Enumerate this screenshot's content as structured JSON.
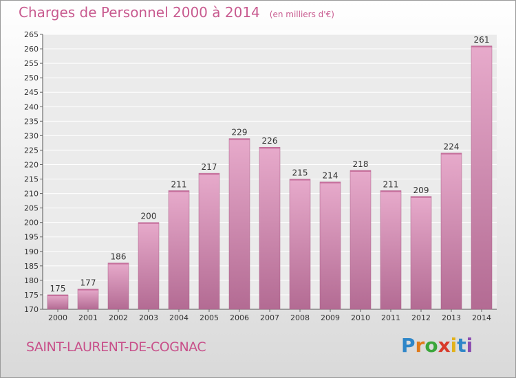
{
  "chart_data": {
    "type": "bar",
    "title": "Charges de Personnel 2000 à 2014",
    "unit": "(en milliers d'€)",
    "categories": [
      "2000",
      "2001",
      "2002",
      "2003",
      "2004",
      "2005",
      "2006",
      "2007",
      "2008",
      "2009",
      "2010",
      "2011",
      "2012",
      "2013",
      "2014"
    ],
    "values": [
      175,
      177,
      186,
      200,
      211,
      217,
      229,
      226,
      215,
      214,
      218,
      211,
      209,
      224,
      261
    ],
    "ylim": [
      170,
      265
    ],
    "yticks": [
      170,
      175,
      180,
      185,
      190,
      195,
      200,
      205,
      210,
      215,
      220,
      225,
      230,
      235,
      240,
      245,
      250,
      255,
      260,
      265
    ],
    "grid": true,
    "xlabel": "",
    "ylabel": ""
  },
  "footer": {
    "commune": "SAINT-LAURENT-DE-COGNAC",
    "brand_letters": [
      {
        "ch": "P",
        "color": "#2e86c8"
      },
      {
        "ch": "r",
        "color": "#e07a1a"
      },
      {
        "ch": "o",
        "color": "#3aa63a"
      },
      {
        "ch": "x",
        "color": "#d83a2a"
      },
      {
        "ch": "i",
        "color": "#e2b21a"
      },
      {
        "ch": "t",
        "color": "#2e86c8"
      },
      {
        "ch": "i",
        "color": "#8a4bb0"
      }
    ]
  },
  "colors": {
    "bar_light": "#e7aacb",
    "bar_dark": "#b36b93",
    "title": "#c85a8f"
  }
}
